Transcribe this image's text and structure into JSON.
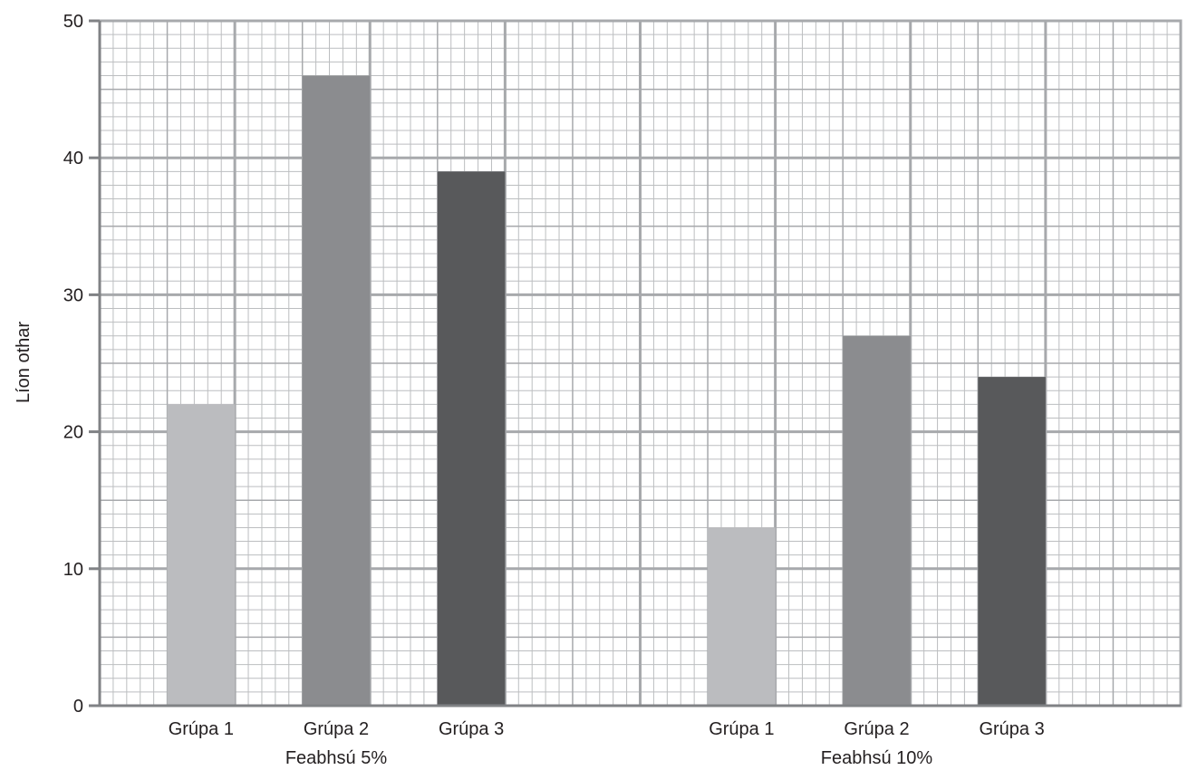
{
  "chart_data": {
    "type": "bar",
    "ylabel": "Líon othar",
    "ylim": [
      0,
      50
    ],
    "yticks": [
      0,
      10,
      20,
      30,
      40,
      50
    ],
    "grid": true,
    "groups": [
      {
        "label": "Feabhsú 5%",
        "categories": [
          "Grúpa 1",
          "Grúpa 2",
          "Grúpa 3"
        ],
        "values": [
          22,
          46,
          39
        ]
      },
      {
        "label": "Feabhsú 10%",
        "categories": [
          "Grúpa 1",
          "Grúpa 2",
          "Grúpa 3"
        ],
        "values": [
          13,
          27,
          24
        ]
      }
    ],
    "colors": {
      "Grúpa 1": "#bbbcbf",
      "Grúpa 2": "#8b8c8f",
      "Grúpa 3": "#58595b",
      "grid_major": "#a7a9ac",
      "grid_minor": "#bcbec0"
    }
  }
}
